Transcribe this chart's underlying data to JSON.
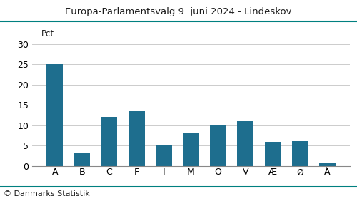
{
  "title": "Europa-Parlamentsvalg 9. juni 2024 - Lindeskov",
  "categories": [
    "A",
    "B",
    "C",
    "F",
    "I",
    "M",
    "O",
    "V",
    "Æ",
    "Ø",
    "Å"
  ],
  "values": [
    25.0,
    3.2,
    12.0,
    13.5,
    5.2,
    8.0,
    10.0,
    11.1,
    6.0,
    6.1,
    0.7
  ],
  "bar_color": "#1e6e8e",
  "pct_label": "Pct.",
  "ylim": [
    0,
    30
  ],
  "yticks": [
    0,
    5,
    10,
    15,
    20,
    25,
    30
  ],
  "footer": "© Danmarks Statistik",
  "title_color": "#1a1a1a",
  "footer_color": "#1a1a1a",
  "grid_color": "#cccccc",
  "title_line_color": "#008080",
  "footer_line_color": "#008080",
  "background_color": "#ffffff",
  "title_fontsize": 9.5,
  "tick_fontsize": 9,
  "footer_fontsize": 8,
  "pct_fontsize": 8.5
}
